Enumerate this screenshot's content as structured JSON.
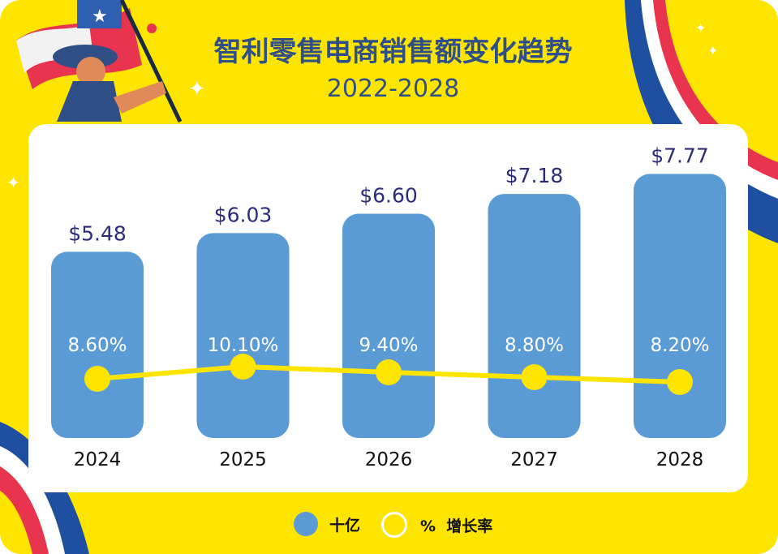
{
  "title": "智利零售电商销售额变化趋势",
  "subtitle": "2022-2028",
  "legend": {
    "bars": "十亿",
    "line": "%  增长率"
  },
  "colors": {
    "background": "#fde500",
    "bar": "#5b9bd5",
    "line": "#fde500",
    "title": "#2f4f86",
    "value_label": "#2e2a7a"
  },
  "chart_data": {
    "type": "bar",
    "categories": [
      "2024",
      "2025",
      "2026",
      "2027",
      "2028"
    ],
    "series": [
      {
        "name": "十亿",
        "type": "bar",
        "values": [
          5.48,
          6.03,
          6.6,
          7.18,
          7.77
        ],
        "labels": [
          "$5.48",
          "$6.03",
          "$6.60",
          "$7.18",
          "$7.77"
        ]
      },
      {
        "name": "% 增长率",
        "type": "line",
        "values": [
          8.6,
          10.1,
          9.4,
          8.8,
          8.2
        ],
        "labels": [
          "8.60%",
          "10.10%",
          "9.40%",
          "8.80%",
          "8.20%"
        ]
      }
    ],
    "title": "智利零售电商销售额变化趋势",
    "subtitle": "2022-2028",
    "legend_position": "bottom"
  }
}
